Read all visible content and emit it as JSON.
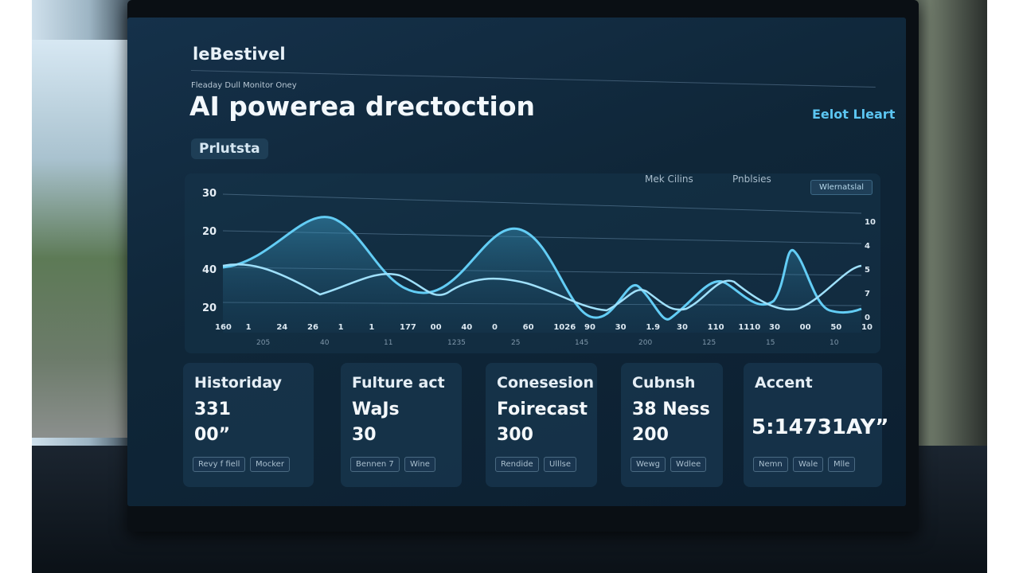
{
  "header": {
    "brand": "leBestivel",
    "subtitle": "Fleaday Dull Monitor Oney",
    "title": "AI powerea drectoction",
    "top_right": "Eelot Lleart"
  },
  "tab": "Prlutsta",
  "legend": [
    "Mek Cilins",
    "Pnblsies"
  ],
  "legend_button": "Wlernatslal",
  "chart": {
    "y_labels": [
      "30",
      "20",
      "40",
      "20"
    ],
    "y2_labels": [
      "10",
      "4",
      "5",
      "7",
      "0"
    ],
    "x_labels": [
      "160",
      "1",
      "24",
      "26",
      "1",
      "1",
      "177",
      "00",
      "40",
      "0",
      "60",
      "1026",
      "90",
      "30",
      "1.9",
      "30",
      "110",
      "1110",
      "30",
      "00",
      "50",
      "10"
    ],
    "x_labels_2": [
      "205",
      "40",
      "11",
      "1235",
      "25",
      "145",
      "200",
      "125",
      "15",
      "10"
    ]
  },
  "cards": [
    {
      "heading": "Historiday",
      "lines": [
        "331",
        "00”"
      ],
      "buttons": [
        "Revy f fiell",
        "Mocker"
      ]
    },
    {
      "heading": "Fulture act",
      "lines": [
        "WaJs",
        "30"
      ],
      "buttons": [
        "Bennen 7",
        "Wine"
      ]
    },
    {
      "heading": "Conesesion",
      "lines": [
        "Foirecast",
        "300"
      ],
      "buttons": [
        "Rendide",
        "Ulllse"
      ]
    },
    {
      "heading": "Cubnsh",
      "lines": [
        "38 Ness",
        "200"
      ],
      "buttons": [
        "Wewg",
        "Wdlee"
      ]
    },
    {
      "heading": "Accent",
      "lines": [
        "5:14731AY”"
      ],
      "buttons": [
        "Nemn",
        "Wale",
        "Mlle"
      ]
    }
  ]
}
